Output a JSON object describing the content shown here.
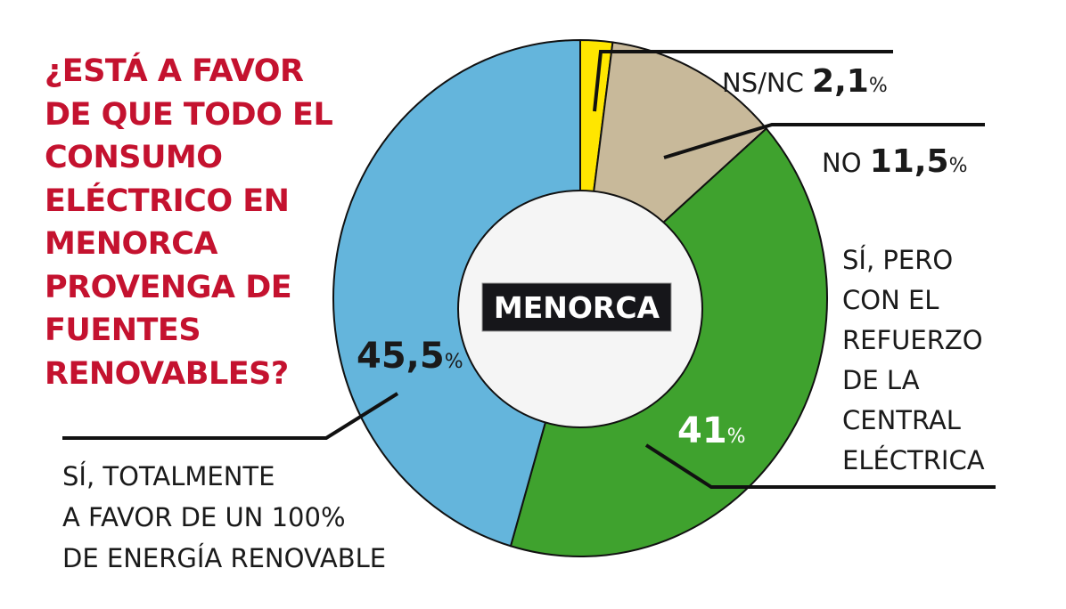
{
  "chart_data": {
    "type": "pie",
    "variant": "donut",
    "title": [
      "¿ESTÁ A FAVOR",
      "DE QUE TODO EL",
      "CONSUMO",
      "ELÉCTRICO EN",
      "MENORCA",
      "PROVENGA DE",
      "FUENTES",
      "RENOVABLES?"
    ],
    "center_label": "MENORCA",
    "slices": [
      {
        "label": "NS/NC",
        "value": 2.1,
        "display": "2,1",
        "color": "#ffe600"
      },
      {
        "label": "NO",
        "value": 11.5,
        "display": "11,5",
        "color": "#c8b99a"
      },
      {
        "label_lines": [
          "SÍ, PERO",
          "CON EL",
          "REFUERZO",
          "DE LA",
          "CENTRAL",
          "ELÉCTRICA"
        ],
        "value": 41,
        "display": "41",
        "color": "#3fa22e"
      },
      {
        "label_lines": [
          "SÍ, TOTALMENTE",
          "A FAVOR DE UN 100%",
          "DE ENERGÍA RENOVABLE"
        ],
        "value": 45.5,
        "display": "45,5",
        "color": "#64b5dc"
      }
    ],
    "percent_sign": "%",
    "start": "top",
    "direction": "clockwise"
  }
}
